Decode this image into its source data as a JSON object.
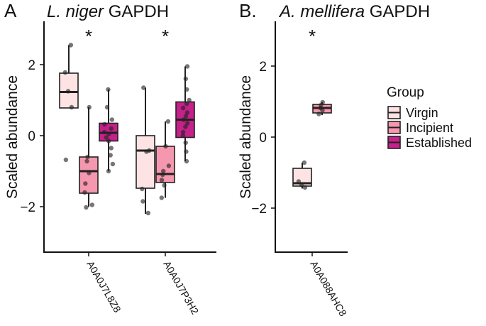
{
  "figure": {
    "legend": {
      "title": "Group",
      "entries": [
        {
          "label": "Virgin",
          "color": "#FDE3E3"
        },
        {
          "label": "Incipient",
          "color": "#F597AE"
        },
        {
          "label": "Established",
          "color": "#C5218A"
        }
      ]
    }
  },
  "chart_data": [
    {
      "type": "box",
      "panel_letter": "A",
      "title_species": "L. niger",
      "title_protein": "GAPDH",
      "ylabel": "Scaled abundance",
      "ylim": [
        -3.4,
        3.4
      ],
      "yticks": [
        2,
        0,
        -2
      ],
      "ytick_labels": [
        "2",
        "0",
        "−2"
      ],
      "categories": [
        "A0A0J7L8Z8",
        "A0A0J7P3H2"
      ],
      "significance": [
        "*",
        "*"
      ],
      "groups": [
        {
          "category": "A0A0J7L8Z8",
          "group": "Virgin",
          "color": "#FDE3E3",
          "min": 0.8,
          "q1": 0.78,
          "median": 1.23,
          "q3": 1.76,
          "max": 2.55,
          "whisker_low": 0.78,
          "points": [
            2.55,
            1.78,
            1.25,
            0.8,
            -0.68
          ]
        },
        {
          "category": "A0A0J7L8Z8",
          "group": "Incipient",
          "color": "#F597AE",
          "q1": -1.62,
          "median": -1.0,
          "q3": -0.6,
          "whisker_low": -2.0,
          "whisker_high": 0.8,
          "points": [
            0.8,
            -0.6,
            -0.72,
            -1.05,
            -1.35,
            -1.6,
            -1.95,
            -2.02
          ]
        },
        {
          "category": "A0A0J7L8Z8",
          "group": "Established",
          "color": "#C5218A",
          "q1": -0.15,
          "median": 0.08,
          "q3": 0.35,
          "whisker_low": -1.0,
          "whisker_high": 1.3,
          "points": [
            1.3,
            0.8,
            0.45,
            0.32,
            0.2,
            0.1,
            0.05,
            -0.05,
            -0.15,
            -0.35,
            -0.55,
            -0.8,
            -1.0
          ]
        },
        {
          "category": "A0A0J7P3H2",
          "group": "Virgin",
          "color": "#FDE3E3",
          "q1": -1.48,
          "median": -0.42,
          "q3": 0.0,
          "whisker_low": -2.2,
          "whisker_high": 1.35,
          "points": [
            1.35,
            -0.42,
            -0.45,
            -1.5,
            -1.85,
            -2.18
          ]
        },
        {
          "category": "A0A0J7P3H2",
          "group": "Incipient",
          "color": "#F597AE",
          "q1": -1.32,
          "median": -1.08,
          "q3": -0.3,
          "whisker_low": -1.75,
          "whisker_high": 0.4,
          "points": [
            0.4,
            -0.3,
            -0.85,
            -1.0,
            -1.1,
            -1.25,
            -1.4,
            -1.75
          ]
        },
        {
          "category": "A0A0J7P3H2",
          "group": "Established",
          "color": "#C5218A",
          "q1": -0.05,
          "median": 0.45,
          "q3": 0.95,
          "whisker_low": -0.72,
          "whisker_high": 1.95,
          "points": [
            1.95,
            1.6,
            1.3,
            1.0,
            0.9,
            0.78,
            0.65,
            0.55,
            0.45,
            0.35,
            0.25,
            0.1,
            0.0,
            -0.2,
            -0.45,
            -0.72
          ]
        }
      ]
    },
    {
      "type": "box",
      "panel_letter": "B.",
      "title_species": "A. mellifera",
      "title_protein": "GAPDH",
      "ylabel": "Scaled abundance",
      "ylim": [
        -3.4,
        3.4
      ],
      "yticks": [
        2,
        0,
        -2
      ],
      "ytick_labels": [
        "2",
        "0",
        "−2"
      ],
      "categories": [
        "A0A088AHC8"
      ],
      "significance": [
        "*"
      ],
      "groups": [
        {
          "category": "A0A088AHC8",
          "group": "Virgin",
          "color": "#FDE3E3",
          "q1": -1.38,
          "median": -1.3,
          "q3": -0.88,
          "whisker_low": -1.45,
          "whisker_high": -0.72,
          "points": [
            -0.72,
            -1.25,
            -1.35,
            -1.42
          ]
        },
        {
          "category": "A0A088AHC8",
          "group": "Incipient",
          "color": "#F597AE",
          "q1": 0.68,
          "median": 0.82,
          "q3": 0.92,
          "whisker_low": 0.62,
          "whisker_high": 0.98,
          "points": [
            0.98,
            0.9,
            0.82,
            0.75,
            0.65
          ]
        }
      ]
    }
  ]
}
